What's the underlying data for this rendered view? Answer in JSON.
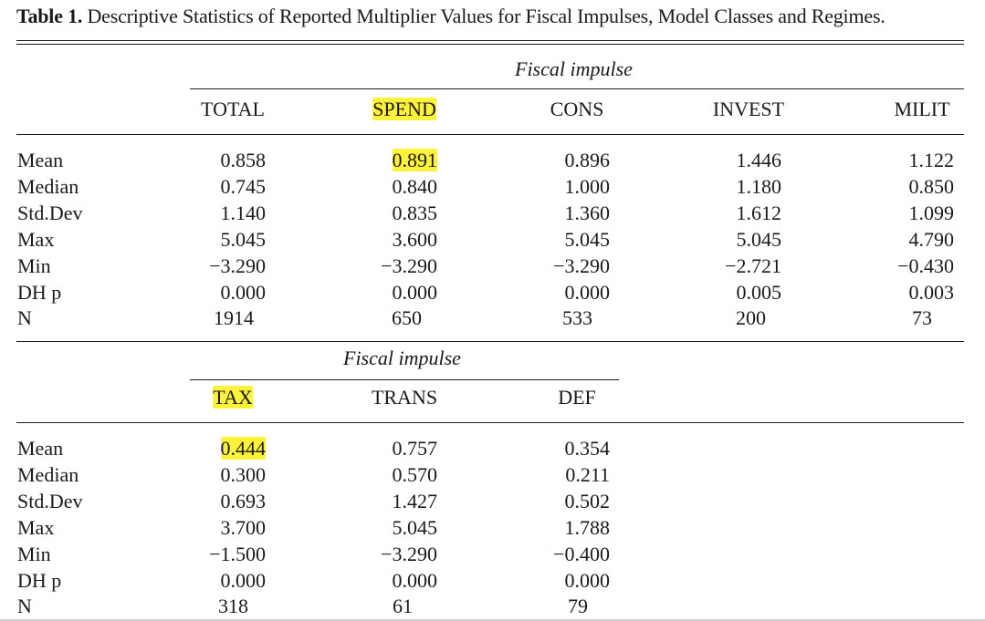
{
  "caption": {
    "label": "Table 1.",
    "text": "Descriptive Statistics of Reported Multiplier Values for Fiscal Impulses, Model Classes and Regimes."
  },
  "row_labels": [
    "Mean",
    "Median",
    "Std.Dev",
    "Max",
    "Min",
    "DH p",
    "N"
  ],
  "panel1": {
    "group_header": "Fiscal impulse",
    "columns": [
      "TOTAL",
      "SPEND",
      "CONS",
      "INVEST",
      "MILIT"
    ],
    "rows": [
      [
        "0.858",
        "0.891",
        "0.896",
        "1.446",
        "1.122"
      ],
      [
        "0.745",
        "0.840",
        "1.000",
        "1.180",
        "0.850"
      ],
      [
        "1.140",
        "0.835",
        "1.360",
        "1.612",
        "1.099"
      ],
      [
        "5.045",
        "3.600",
        "5.045",
        "5.045",
        "4.790"
      ],
      [
        "−3.290",
        "−3.290",
        "−3.290",
        "−2.721",
        "−0.430"
      ],
      [
        "0.000",
        "0.000",
        "0.000",
        "0.005",
        "0.003"
      ],
      [
        "1914",
        "650",
        "533",
        "200",
        "73"
      ]
    ]
  },
  "panel2": {
    "group_header": "Fiscal impulse",
    "columns": [
      "TAX",
      "TRANS",
      "DEF"
    ],
    "rows": [
      [
        "0.444",
        "0.757",
        "0.354"
      ],
      [
        "0.300",
        "0.570",
        "0.211"
      ],
      [
        "0.693",
        "1.427",
        "0.502"
      ],
      [
        "3.700",
        "5.045",
        "1.788"
      ],
      [
        "−1.500",
        "−3.290",
        "−0.400"
      ],
      [
        "0.000",
        "0.000",
        "0.000"
      ],
      [
        "318",
        "61",
        "79"
      ]
    ]
  },
  "highlight_color": "#fff23a"
}
